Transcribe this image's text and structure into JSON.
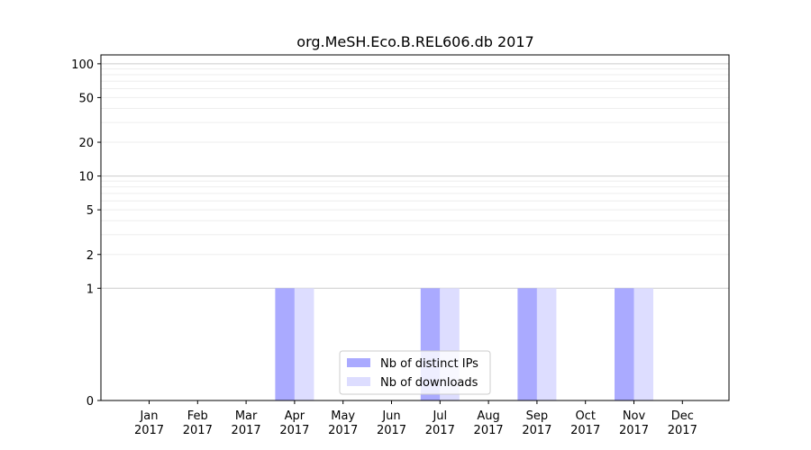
{
  "chart_data": {
    "type": "bar",
    "title": "org.MeSH.Eco.B.REL606.db 2017",
    "xlabel": "",
    "ylabel": "",
    "yscale": "symlog",
    "ylim": [
      0,
      120
    ],
    "yticks": [
      0,
      1,
      2,
      5,
      10,
      20,
      50,
      100
    ],
    "ytick_labels": [
      "0",
      "1",
      "2",
      "5",
      "10",
      "20",
      "50",
      "100"
    ],
    "categories": [
      "Jan",
      "Feb",
      "Mar",
      "Apr",
      "May",
      "Jun",
      "Jul",
      "Aug",
      "Sep",
      "Oct",
      "Nov",
      "Dec"
    ],
    "category_year": "2017",
    "grid": true,
    "legend_position": "lower center",
    "series": [
      {
        "name": "Nb of distinct IPs",
        "color": "#aaaaff",
        "values": [
          0,
          0,
          0,
          1,
          0,
          0,
          1,
          0,
          1,
          0,
          1,
          0
        ]
      },
      {
        "name": "Nb of downloads",
        "color": "#ddddff",
        "values": [
          0,
          0,
          0,
          1,
          0,
          0,
          1,
          0,
          1,
          0,
          1,
          0
        ]
      }
    ]
  }
}
